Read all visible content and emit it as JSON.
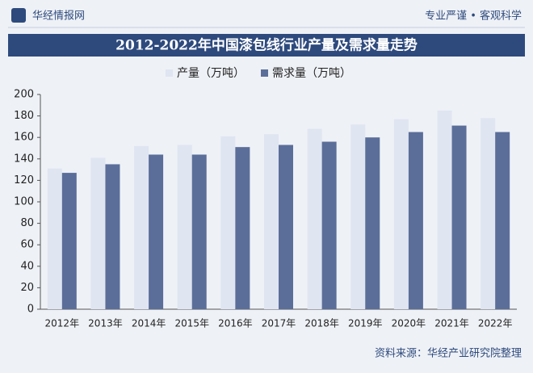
{
  "header": {
    "brand": "华经情报网",
    "slogan": "专业严谨 • 客观科学"
  },
  "chart_data": {
    "type": "bar",
    "title": "2012-2022年中国漆包线行业产量及需求量走势",
    "categories": [
      "2012年",
      "2013年",
      "2014年",
      "2015年",
      "2016年",
      "2017年",
      "2018年",
      "2019年",
      "2020年",
      "2021年",
      "2022年"
    ],
    "series": [
      {
        "name": "产量（万吨）",
        "color": "#dfe5f1",
        "values": [
          131,
          141,
          152,
          153,
          161,
          163,
          168,
          172,
          177,
          185,
          178
        ]
      },
      {
        "name": "需求量（万吨）",
        "color": "#5b6e9a",
        "values": [
          127,
          135,
          144,
          144,
          151,
          153,
          156,
          160,
          165,
          171,
          165
        ]
      }
    ],
    "ylim": [
      0,
      200
    ],
    "yticks": [
      0,
      20,
      40,
      60,
      80,
      100,
      120,
      140,
      160,
      180,
      200
    ],
    "grid": false
  },
  "footer": {
    "source": "资料来源：华经产业研究院整理"
  }
}
